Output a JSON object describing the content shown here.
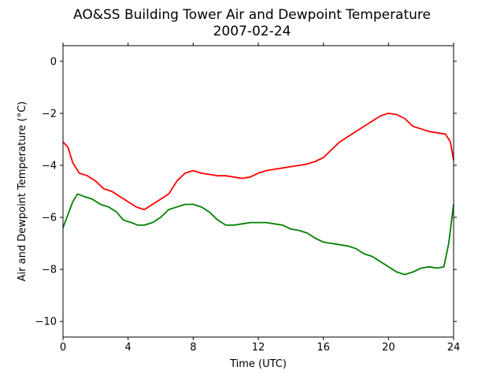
{
  "chart_data": {
    "type": "line",
    "title": "AO&SS Building Tower Air and Dewpoint Temperature",
    "subtitle": "2007-02-24",
    "xlabel": "Time (UTC)",
    "ylabel": "Air and Dewpoint Temperature (°C)",
    "xlim": [
      0,
      24
    ],
    "ylim": [
      -10.6,
      0.6
    ],
    "xticks": [
      0,
      4,
      8,
      12,
      16,
      20,
      24
    ],
    "yticks": [
      0,
      -2,
      -4,
      -6,
      -8,
      -10
    ],
    "ytick_labels": [
      "0",
      "−2",
      "−4",
      "−6",
      "−8",
      "−10"
    ],
    "grid": false,
    "legend": "none",
    "series": [
      {
        "color": "#ff0000",
        "x": [
          0,
          0.3,
          0.6,
          1.0,
          1.5,
          2.0,
          2.5,
          3.0,
          3.5,
          4.0,
          4.5,
          5.0,
          5.5,
          6.0,
          6.5,
          7.0,
          7.5,
          8.0,
          8.5,
          9.0,
          9.5,
          10.0,
          10.5,
          11.0,
          11.5,
          12.0,
          12.5,
          13.0,
          13.5,
          14.0,
          14.5,
          15.0,
          15.5,
          16.0,
          16.5,
          17.0,
          17.5,
          18.0,
          18.5,
          19.0,
          19.5,
          20.0,
          20.5,
          21.0,
          21.5,
          22.0,
          22.5,
          23.0,
          23.5,
          23.8,
          24.0
        ],
        "y": [
          -3.1,
          -3.3,
          -3.9,
          -4.3,
          -4.4,
          -4.6,
          -4.9,
          -5.0,
          -5.2,
          -5.4,
          -5.6,
          -5.7,
          -5.5,
          -5.3,
          -5.1,
          -4.6,
          -4.3,
          -4.2,
          -4.3,
          -4.35,
          -4.4,
          -4.4,
          -4.45,
          -4.5,
          -4.45,
          -4.3,
          -4.2,
          -4.15,
          -4.1,
          -4.05,
          -4.0,
          -3.95,
          -3.85,
          -3.7,
          -3.4,
          -3.1,
          -2.9,
          -2.7,
          -2.5,
          -2.3,
          -2.1,
          -2.0,
          -2.05,
          -2.2,
          -2.5,
          -2.6,
          -2.7,
          -2.75,
          -2.8,
          -3.1,
          -3.8
        ]
      },
      {
        "color": "#008000",
        "x": [
          0,
          0.3,
          0.6,
          0.9,
          1.3,
          1.8,
          2.3,
          2.8,
          3.3,
          3.7,
          4.2,
          4.6,
          5.0,
          5.5,
          6.0,
          6.5,
          7.0,
          7.5,
          8.0,
          8.5,
          9.0,
          9.5,
          10.0,
          10.5,
          11.0,
          11.5,
          12.0,
          12.5,
          13.0,
          13.5,
          14.0,
          14.5,
          15.0,
          15.5,
          16.0,
          16.5,
          17.0,
          17.5,
          18.0,
          18.5,
          19.0,
          19.5,
          20.0,
          20.5,
          21.0,
          21.5,
          22.0,
          22.5,
          23.0,
          23.4,
          23.7,
          24.0
        ],
        "y": [
          -6.4,
          -5.9,
          -5.4,
          -5.1,
          -5.2,
          -5.3,
          -5.5,
          -5.6,
          -5.8,
          -6.1,
          -6.2,
          -6.3,
          -6.3,
          -6.2,
          -6.0,
          -5.7,
          -5.6,
          -5.5,
          -5.5,
          -5.6,
          -5.8,
          -6.1,
          -6.3,
          -6.3,
          -6.25,
          -6.2,
          -6.2,
          -6.2,
          -6.25,
          -6.3,
          -6.45,
          -6.5,
          -6.6,
          -6.8,
          -6.95,
          -7.0,
          -7.05,
          -7.1,
          -7.2,
          -7.4,
          -7.5,
          -7.7,
          -7.9,
          -8.1,
          -8.2,
          -8.1,
          -7.95,
          -7.9,
          -7.95,
          -7.9,
          -7.0,
          -5.5
        ]
      }
    ]
  }
}
